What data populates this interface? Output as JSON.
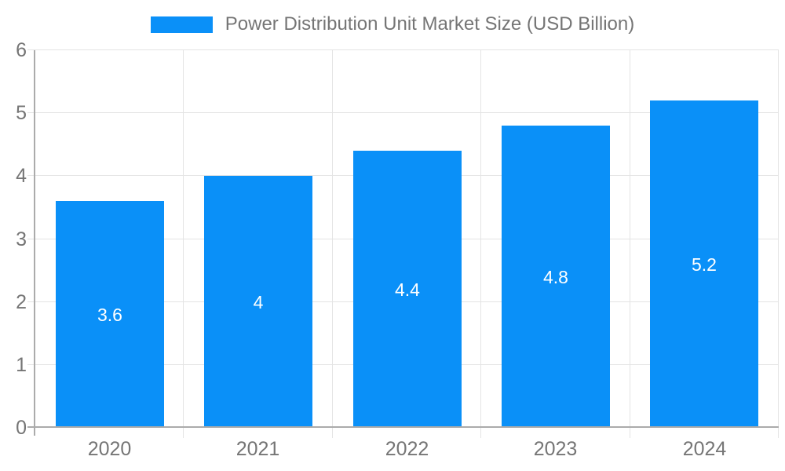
{
  "chart_data": {
    "type": "bar",
    "title": "Power Distribution Unit Market Size (USD Billion)",
    "categories": [
      "2020",
      "2021",
      "2022",
      "2023",
      "2024"
    ],
    "values": [
      3.6,
      4,
      4.4,
      4.8,
      5.2
    ],
    "value_labels": [
      "3.6",
      "4",
      "4.4",
      "4.8",
      "5.2"
    ],
    "ylabel": "",
    "xlabel": "",
    "ylim": [
      0,
      6
    ],
    "yticks": [
      0,
      1,
      2,
      3,
      4,
      5,
      6
    ],
    "ytick_labels": [
      "0",
      "1",
      "2",
      "3",
      "4",
      "5",
      "6"
    ],
    "grid": true,
    "legend_position": "top-center",
    "colors": {
      "bar": "#0a90f8",
      "grid": "#e4e4e4",
      "axis": "#ababab",
      "tick_label": "#757575",
      "value_label": "#ffffff",
      "legend_text": "#757575",
      "background": "#ffffff"
    }
  }
}
